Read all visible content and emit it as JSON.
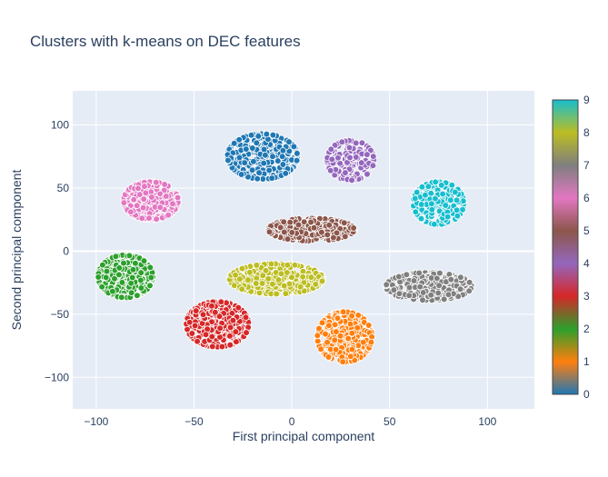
{
  "chart_data": {
    "type": "scatter",
    "title": "Clusters with k-means on DEC features",
    "xlabel": "First principal component",
    "ylabel": "Second principal component",
    "xlim": [
      -112,
      124
    ],
    "ylim": [
      -125,
      127
    ],
    "xticks": [
      -100,
      -50,
      0,
      50,
      100
    ],
    "yticks": [
      -100,
      -50,
      0,
      50,
      100
    ],
    "grid": true,
    "plot_background": "#E5ECF6",
    "marker_outline": "#ffffff",
    "colorbar": {
      "ticks": [
        0,
        1,
        2,
        3,
        4,
        5,
        6,
        7,
        8,
        9
      ],
      "range": [
        0,
        9
      ],
      "colors": [
        "#1f77b4",
        "#ff7f0e",
        "#2ca02c",
        "#d62728",
        "#9467bd",
        "#8c564b",
        "#e377c2",
        "#7f7f7f",
        "#bcbd22",
        "#17becf"
      ],
      "position": "right"
    },
    "clusters": [
      {
        "label": 0,
        "color": "#1f77b4",
        "center": [
          -15,
          75
        ],
        "spread": [
          18,
          18
        ],
        "count": 320
      },
      {
        "label": 1,
        "color": "#ff7f0e",
        "center": [
          27,
          -68
        ],
        "spread": [
          14,
          20
        ],
        "count": 360
      },
      {
        "label": 2,
        "color": "#2ca02c",
        "center": [
          -85,
          -20
        ],
        "spread": [
          14,
          17
        ],
        "count": 330
      },
      {
        "label": 3,
        "color": "#d62728",
        "center": [
          -38,
          -58
        ],
        "spread": [
          16,
          18
        ],
        "count": 330
      },
      {
        "label": 4,
        "color": "#9467bd",
        "center": [
          30,
          72
        ],
        "spread": [
          12,
          16
        ],
        "count": 140
      },
      {
        "label": 5,
        "color": "#8c564b",
        "center": [
          10,
          17
        ],
        "spread": [
          22,
          9
        ],
        "count": 260
      },
      {
        "label": 6,
        "color": "#e377c2",
        "center": [
          -72,
          40
        ],
        "spread": [
          14,
          15
        ],
        "count": 300
      },
      {
        "label": 7,
        "color": "#7f7f7f",
        "center": [
          70,
          -28
        ],
        "spread": [
          22,
          11
        ],
        "count": 300
      },
      {
        "label": 8,
        "color": "#bcbd22",
        "center": [
          -8,
          -22
        ],
        "spread": [
          24,
          12
        ],
        "count": 330
      },
      {
        "label": 9,
        "color": "#17becf",
        "center": [
          75,
          38
        ],
        "spread": [
          13,
          17
        ],
        "count": 200
      }
    ]
  }
}
